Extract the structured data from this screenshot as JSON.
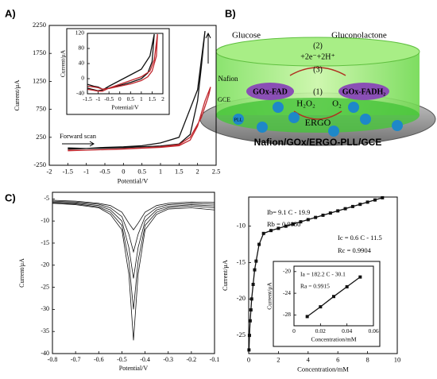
{
  "panel_labels": [
    "A)",
    "B)",
    "C)"
  ],
  "chart_data": [
    {
      "type": "line",
      "xlim": [
        -2,
        2.5
      ],
      "xticks": [
        -2,
        -1.5,
        -1,
        -0.5,
        0,
        0.5,
        1,
        1.5,
        2,
        2.5
      ],
      "ylim": [
        -250,
        2250
      ],
      "yticks": [
        -250,
        250,
        750,
        1250,
        1750,
        2250
      ],
      "xlabel": "Potential/V",
      "ylabel": "Current/μA",
      "annotations": [
        "Forward scan"
      ],
      "series": [
        {
          "color": "#111111",
          "x": [
            -1.5,
            -1,
            -0.5,
            0,
            0.5,
            1,
            1.5,
            1.8,
            2,
            2.1,
            2.2,
            2.2,
            2.0,
            1.5,
            1,
            0.5,
            0,
            -0.5,
            -1,
            -1.5
          ],
          "values": [
            60,
            50,
            55,
            65,
            80,
            95,
            130,
            300,
            900,
            1500,
            2150,
            2150,
            1100,
            250,
            150,
            100,
            80,
            70,
            50,
            40
          ]
        },
        {
          "color": "#c0272d",
          "x": [
            -1.5,
            -1,
            -0.5,
            0,
            0.5,
            1,
            1.5,
            1.8,
            2,
            2.2,
            2.35,
            2.3,
            2.1,
            1.8,
            1.5,
            1,
            0.5,
            0,
            -0.5,
            -1,
            -1.5
          ],
          "values": [
            20,
            20,
            30,
            40,
            55,
            70,
            100,
            200,
            450,
            900,
            1150,
            1000,
            600,
            250,
            120,
            80,
            60,
            45,
            30,
            20,
            10
          ]
        }
      ]
    },
    {
      "type": "line",
      "xlim": [
        -1.5,
        2
      ],
      "xticks": [
        -1.5,
        -1,
        -0.5,
        0,
        0.5,
        1,
        1.5,
        2
      ],
      "ylim": [
        -40,
        120
      ],
      "yticks": [
        -40,
        0,
        40,
        80,
        120
      ],
      "xlabel": "Potential/V",
      "ylabel": "Current/μA",
      "annotations": [],
      "series": [
        {
          "color": "#111111",
          "x": [
            -1.5,
            -1.2,
            -1,
            -0.8,
            -0.5,
            0,
            0.5,
            1,
            1.3,
            1.5,
            1.6,
            1.6,
            1.4,
            1,
            0.5,
            0,
            -0.5,
            -0.8,
            -1,
            -1.3,
            -1.5
          ],
          "values": [
            -15,
            -20,
            -22,
            -28,
            -25,
            -18,
            -10,
            0,
            15,
            45,
            118,
            118,
            60,
            25,
            10,
            -5,
            -20,
            -30,
            -32,
            -28,
            -25
          ]
        },
        {
          "color": "#c0272d",
          "x": [
            -1.5,
            -1.2,
            -1,
            -0.8,
            -0.5,
            0,
            0.5,
            1,
            1.3,
            1.5,
            1.7,
            1.75,
            1.6,
            1.4,
            1,
            0.5,
            0,
            -0.5,
            -0.8,
            -1,
            -1.3,
            -1.5
          ],
          "values": [
            -20,
            -22,
            -24,
            -28,
            -26,
            -20,
            -14,
            -5,
            5,
            20,
            60,
            118,
            50,
            20,
            5,
            -5,
            -15,
            -25,
            -33,
            -33,
            -30,
            -28
          ]
        }
      ]
    },
    {
      "type": "line",
      "xlim": [
        -0.8,
        -0.1
      ],
      "xticks": [
        -0.8,
        -0.7,
        -0.6,
        -0.5,
        -0.4,
        -0.3,
        -0.2,
        -0.1
      ],
      "ylim": [
        -40,
        -3.5
      ],
      "yticks": [
        -5,
        -10,
        -15,
        -20,
        -25,
        -30,
        -35,
        -40
      ],
      "xlabel": "Potential/V",
      "ylabel": "Current/μA",
      "annotations": [],
      "series": [
        {
          "color": "#111111",
          "x": [
            -0.8,
            -0.7,
            -0.6,
            -0.55,
            -0.5,
            -0.47,
            -0.45,
            -0.43,
            -0.4,
            -0.35,
            -0.3,
            -0.2,
            -0.1
          ],
          "values": [
            -5.3,
            -5.5,
            -6,
            -6.5,
            -8,
            -10.5,
            -12,
            -10.5,
            -8,
            -6.5,
            -6,
            -5.7,
            -5.8
          ]
        },
        {
          "color": "#111111",
          "x": [
            -0.8,
            -0.7,
            -0.6,
            -0.55,
            -0.5,
            -0.47,
            -0.45,
            -0.43,
            -0.4,
            -0.35,
            -0.3,
            -0.2,
            -0.1
          ],
          "values": [
            -5.5,
            -5.7,
            -6.2,
            -7,
            -9,
            -13,
            -17,
            -13,
            -9,
            -7,
            -6.3,
            -6,
            -6.2
          ]
        },
        {
          "color": "#111111",
          "x": [
            -0.8,
            -0.7,
            -0.6,
            -0.55,
            -0.5,
            -0.47,
            -0.45,
            -0.43,
            -0.4,
            -0.35,
            -0.3,
            -0.2,
            -0.1
          ],
          "values": [
            -5.7,
            -5.9,
            -6.5,
            -7.5,
            -10,
            -16,
            -23,
            -16,
            -10,
            -7.5,
            -6.7,
            -6.3,
            -6.6
          ]
        },
        {
          "color": "#111111",
          "x": [
            -0.8,
            -0.7,
            -0.6,
            -0.55,
            -0.5,
            -0.47,
            -0.45,
            -0.43,
            -0.4,
            -0.35,
            -0.3,
            -0.2,
            -0.1
          ],
          "values": [
            -5.9,
            -6.1,
            -6.8,
            -8,
            -11,
            -19,
            -30,
            -19,
            -11,
            -8,
            -7,
            -6.6,
            -7
          ]
        },
        {
          "color": "#111111",
          "x": [
            -0.8,
            -0.7,
            -0.6,
            -0.55,
            -0.5,
            -0.47,
            -0.45,
            -0.43,
            -0.4,
            -0.35,
            -0.3,
            -0.2,
            -0.1
          ],
          "values": [
            -6,
            -6.3,
            -7,
            -8.5,
            -12,
            -22,
            -37,
            -22,
            -12,
            -8.5,
            -7.3,
            -7,
            -7.5
          ]
        }
      ]
    },
    {
      "type": "line",
      "markers": true,
      "xlim": [
        0,
        10
      ],
      "xticks": [
        0,
        2,
        4,
        6,
        8,
        10
      ],
      "ylim": [
        -27.5,
        -6
      ],
      "yticks": [
        -10,
        -15,
        -20,
        -25
      ],
      "xlabel": "Concentration/mM",
      "ylabel": "Current/μA",
      "annotations": [
        "Ic = 0.6 C - 11.5",
        "Rc = 0.9904",
        "Ib= 9.1 C - 19.9",
        "Rb = 0.9850"
      ],
      "series": [
        {
          "color": "#111111",
          "x": [
            0.02,
            0.05,
            0.1,
            0.15,
            0.2,
            0.3,
            0.4,
            0.5,
            0.7,
            1,
            1.5,
            2,
            2.5,
            3,
            3.5,
            4,
            4.5,
            5,
            5.5,
            6,
            6.5,
            7,
            7.5,
            8,
            8.5,
            9
          ],
          "values": [
            -27,
            -25,
            -23,
            -21.5,
            -20,
            -18,
            -16,
            -14.8,
            -12.5,
            -11,
            -10.6,
            -10.3,
            -10,
            -9.7,
            -9.4,
            -9.1,
            -8.8,
            -8.5,
            -8.2,
            -7.9,
            -7.6,
            -7.3,
            -7,
            -6.7,
            -6.4,
            -6.1
          ]
        }
      ]
    },
    {
      "type": "line",
      "markers": true,
      "xlim": [
        0,
        0.06
      ],
      "xticks": [
        0,
        0.02,
        0.04,
        0.06
      ],
      "ylim": [
        -30,
        -19
      ],
      "yticks": [
        -20,
        -24,
        -28
      ],
      "xlabel": "Concentration/mM",
      "ylabel": "Current/μA",
      "annotations": [
        "Ia = 182.2 C - 30.1",
        "Ra = 0.9915"
      ],
      "series": [
        {
          "color": "#111111",
          "x": [
            0.01,
            0.02,
            0.03,
            0.04,
            0.05
          ],
          "values": [
            -28.3,
            -26.5,
            -24.6,
            -22.8,
            -21
          ]
        }
      ]
    }
  ],
  "diagram": {
    "labels": [
      "Glucose",
      "Gluconolactone",
      "(2)",
      "+2e⁻+2H⁺",
      "(3)",
      "GOx-FAD",
      "GOx-FADH₂",
      "(1)",
      "H₂O₂",
      "O₂",
      "ERGO",
      "GCE",
      "Nafion/GOx/ERGO-PLL/GCE",
      "PLL",
      "Nafion"
    ]
  }
}
